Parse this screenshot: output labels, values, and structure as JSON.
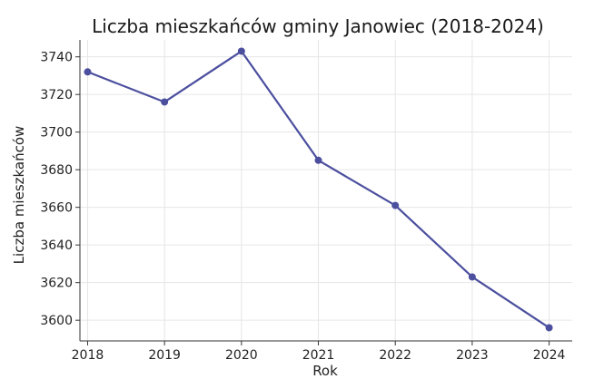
{
  "chart_data": {
    "type": "line",
    "title": "Liczba mieszkańców gminy Janowiec (2018-2024)",
    "xlabel": "Rok",
    "ylabel": "Liczba mieszkańców",
    "x": [
      2018,
      2019,
      2020,
      2021,
      2022,
      2023,
      2024
    ],
    "series": [
      {
        "values": [
          3732,
          3716,
          3743,
          3685,
          3661,
          3623,
          3596
        ]
      }
    ],
    "xticks": [
      "2018",
      "2019",
      "2020",
      "2021",
      "2022",
      "2023",
      "2024"
    ],
    "yticks": [
      3600,
      3620,
      3640,
      3660,
      3680,
      3700,
      3720,
      3740
    ],
    "xlim": [
      2017.9,
      2024.3
    ],
    "ylim": [
      3589,
      3749
    ],
    "grid": true,
    "colors": {
      "line": "#4b4f9e",
      "marker": "#4b4f9e"
    }
  }
}
